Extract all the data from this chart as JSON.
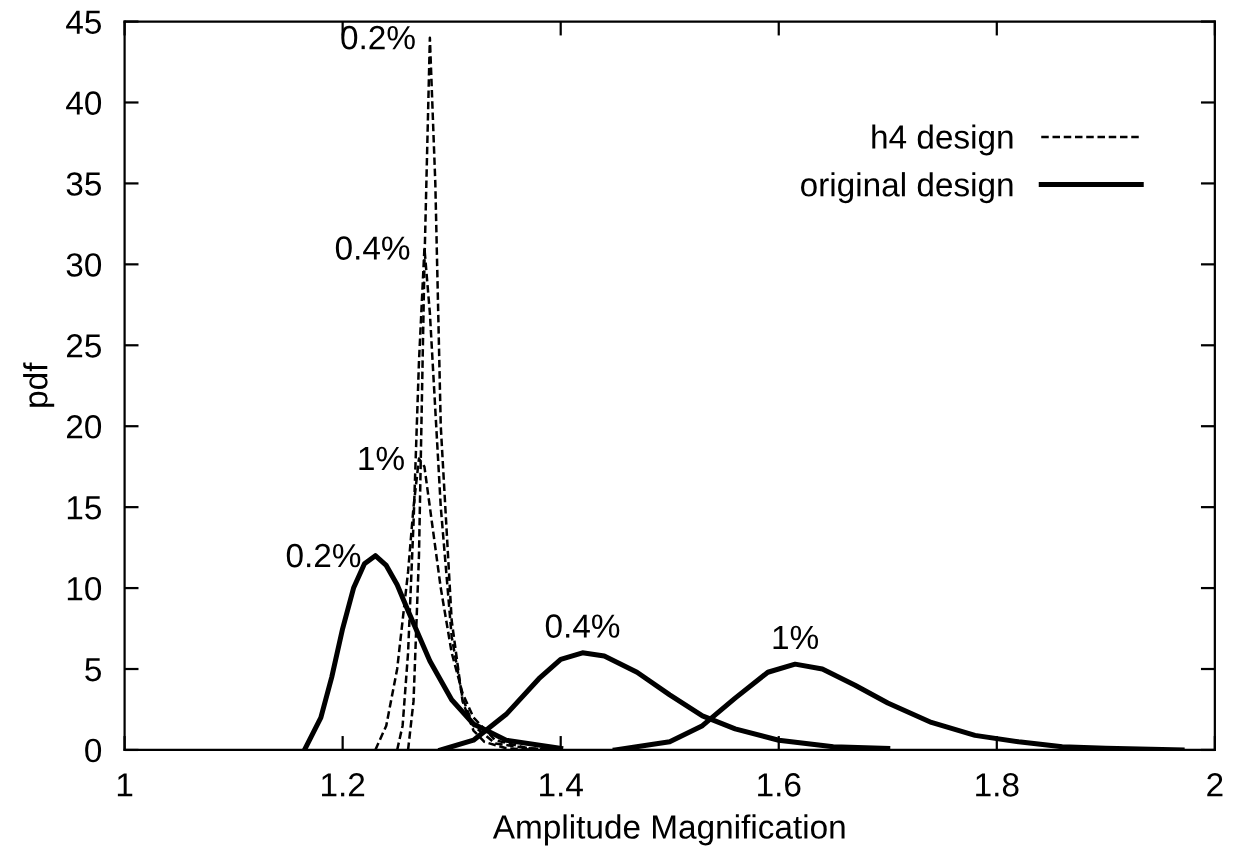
{
  "chart_data": {
    "type": "line",
    "xlabel": "Amplitude Magnification",
    "ylabel": "pdf",
    "xlim": [
      1,
      2
    ],
    "xticks": [
      1,
      1.2,
      1.4,
      1.6,
      1.8,
      2
    ],
    "ylim": [
      0,
      45
    ],
    "yticks": [
      0,
      5,
      10,
      15,
      20,
      25,
      30,
      35,
      40,
      45
    ],
    "grid": false,
    "legend": "top right",
    "marker": "none",
    "series": [
      {
        "name": "h4 design",
        "color": "#000000",
        "line_style": "dashed",
        "x": [
          1.26,
          1.265,
          1.27,
          1.275,
          1.28,
          1.285,
          1.29,
          1.3,
          1.31,
          1.32,
          1.33,
          1.35,
          1.38
        ],
        "values": [
          0,
          3,
          12,
          30,
          44,
          35,
          20,
          8,
          3,
          1.2,
          0.5,
          0.1,
          0
        ]
      },
      {
        "color": "#000000",
        "line_style": "dashed",
        "x": [
          1.25,
          1.255,
          1.26,
          1.265,
          1.27,
          1.275,
          1.28,
          1.29,
          1.3,
          1.31,
          1.32,
          1.34,
          1.37,
          1.4
        ],
        "values": [
          0,
          1.5,
          6,
          14,
          24,
          31,
          27,
          15,
          7,
          3.2,
          1.5,
          0.4,
          0.1,
          0
        ]
      },
      {
        "color": "#000000",
        "line_style": "dashed",
        "x": [
          1.23,
          1.24,
          1.25,
          1.26,
          1.265,
          1.27,
          1.275,
          1.28,
          1.29,
          1.3,
          1.31,
          1.32,
          1.34,
          1.37,
          1.4
        ],
        "values": [
          0,
          1.5,
          5,
          11,
          15,
          18,
          17.5,
          15,
          10,
          6,
          3.5,
          2,
          0.6,
          0.1,
          0
        ]
      },
      {
        "name": "original design",
        "color": "#000000",
        "line_style": "solid",
        "x": [
          1.165,
          1.18,
          1.19,
          1.2,
          1.21,
          1.22,
          1.23,
          1.24,
          1.25,
          1.26,
          1.28,
          1.3,
          1.32,
          1.35,
          1.4
        ],
        "values": [
          0,
          2,
          4.5,
          7.5,
          10,
          11.5,
          12,
          11.4,
          10.2,
          8.6,
          5.5,
          3.1,
          1.6,
          0.6,
          0.1
        ]
      },
      {
        "color": "#000000",
        "line_style": "solid",
        "x": [
          1.29,
          1.32,
          1.35,
          1.38,
          1.4,
          1.42,
          1.44,
          1.47,
          1.5,
          1.53,
          1.56,
          1.6,
          1.65,
          1.7
        ],
        "values": [
          0,
          0.6,
          2.2,
          4.4,
          5.6,
          6.0,
          5.8,
          4.8,
          3.4,
          2.1,
          1.3,
          0.6,
          0.2,
          0.1
        ]
      },
      {
        "color": "#000000",
        "line_style": "solid",
        "x": [
          1.45,
          1.5,
          1.53,
          1.56,
          1.59,
          1.615,
          1.64,
          1.67,
          1.7,
          1.74,
          1.78,
          1.82,
          1.86,
          1.9,
          1.97
        ],
        "values": [
          0,
          0.5,
          1.5,
          3.2,
          4.8,
          5.3,
          5.0,
          4.0,
          2.9,
          1.7,
          0.9,
          0.5,
          0.2,
          0.1,
          0
        ]
      }
    ],
    "annotations": [
      {
        "text": "0.2%",
        "x": 1.28,
        "y": 44
      },
      {
        "text": "0.4%",
        "x": 1.275,
        "y": 31
      },
      {
        "text": "1%",
        "x": 1.27,
        "y": 18
      },
      {
        "text": "0.2%",
        "x": 1.23,
        "y": 12
      },
      {
        "text": "0.4%",
        "x": 1.42,
        "y": 6
      },
      {
        "text": "1%",
        "x": 1.615,
        "y": 5.3
      }
    ]
  }
}
